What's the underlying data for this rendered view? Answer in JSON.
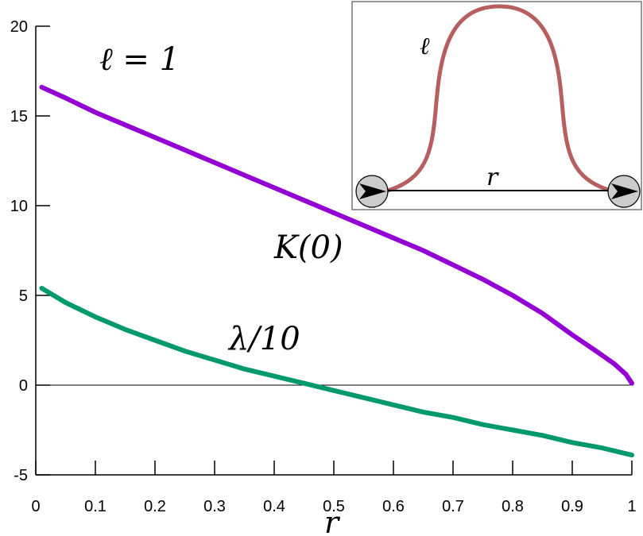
{
  "chart_data": {
    "type": "line",
    "title": "",
    "xlabel": "r",
    "ylabel": "",
    "xlim": [
      0,
      1
    ],
    "ylim": [
      -5,
      20
    ],
    "x_ticks": [
      "0",
      "0.1",
      "0.2",
      "0.3",
      "0.4",
      "0.5",
      "0.6",
      "0.7",
      "0.8",
      "0.9",
      "1"
    ],
    "y_ticks": [
      "-5",
      "0",
      "5",
      "10",
      "15",
      "20"
    ],
    "zero_line": true,
    "grid": false,
    "legend": "none",
    "annotation_ell": "ℓ = 1",
    "series": [
      {
        "name": "K(0)",
        "color": "#9400d3",
        "x": [
          0.01,
          0.05,
          0.1,
          0.15,
          0.2,
          0.25,
          0.3,
          0.35,
          0.4,
          0.45,
          0.5,
          0.55,
          0.6,
          0.65,
          0.7,
          0.75,
          0.8,
          0.85,
          0.9,
          0.94,
          0.97,
          0.99,
          1.0
        ],
        "y": [
          16.6,
          16.0,
          15.2,
          14.5,
          13.8,
          13.1,
          12.4,
          11.7,
          11.0,
          10.3,
          9.6,
          8.9,
          8.2,
          7.5,
          6.7,
          5.9,
          5.0,
          4.0,
          2.8,
          1.9,
          1.2,
          0.6,
          0.1
        ]
      },
      {
        "name": "λ/10",
        "color": "#00996b",
        "x": [
          0.01,
          0.05,
          0.1,
          0.15,
          0.2,
          0.25,
          0.3,
          0.35,
          0.4,
          0.45,
          0.5,
          0.55,
          0.6,
          0.65,
          0.7,
          0.75,
          0.8,
          0.85,
          0.9,
          0.95,
          1.0
        ],
        "y": [
          5.4,
          4.6,
          3.8,
          3.1,
          2.5,
          1.9,
          1.4,
          0.9,
          0.5,
          0.1,
          -0.3,
          -0.7,
          -1.1,
          -1.5,
          -1.8,
          -2.2,
          -2.5,
          -2.8,
          -3.2,
          -3.5,
          -3.9
        ]
      }
    ]
  },
  "inset": {
    "ell_label": "ℓ",
    "r_label": "r",
    "curve_color": "#b55f5f"
  }
}
